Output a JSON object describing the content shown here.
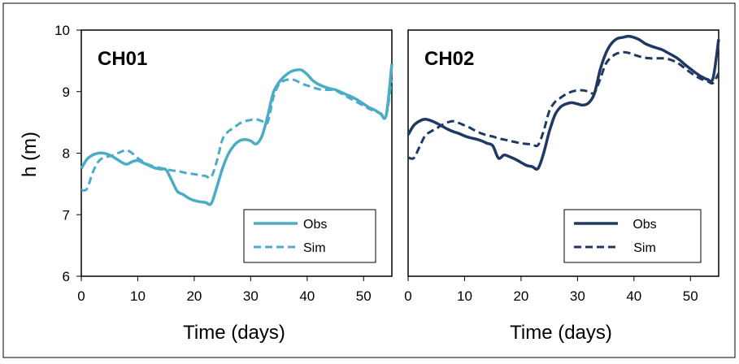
{
  "chart_data": [
    {
      "type": "line",
      "title": "CH01",
      "xlabel": "Time (days)",
      "ylabel": "h (m)",
      "xlim": [
        0,
        55
      ],
      "ylim": [
        6,
        10
      ],
      "xticks": [
        "0",
        "10",
        "20",
        "30",
        "40",
        "50"
      ],
      "yticks": [
        "6",
        "7",
        "8",
        "9",
        "10"
      ],
      "legend_position": "bottom-right",
      "grid": false,
      "series": [
        {
          "name": "Obs",
          "style": "solid",
          "color": "#4bacc6",
          "x": [
            0,
            1,
            2,
            3,
            4,
            5,
            6,
            7,
            8,
            9,
            10,
            11,
            12,
            13,
            14,
            15,
            16,
            17,
            18,
            19,
            20,
            21,
            22,
            23,
            24,
            25,
            26,
            27,
            28,
            29,
            30,
            31,
            32,
            33,
            34,
            35,
            36,
            37,
            38,
            39,
            40,
            41,
            42,
            43,
            44,
            45,
            46,
            47,
            48,
            49,
            50,
            51,
            52,
            53,
            54,
            55
          ],
          "values": [
            7.75,
            7.9,
            7.97,
            8.0,
            8.0,
            7.97,
            7.92,
            7.86,
            7.82,
            7.86,
            7.88,
            7.84,
            7.8,
            7.76,
            7.74,
            7.73,
            7.56,
            7.38,
            7.33,
            7.27,
            7.23,
            7.21,
            7.2,
            7.18,
            7.45,
            7.75,
            7.98,
            8.12,
            8.2,
            8.22,
            8.2,
            8.15,
            8.28,
            8.6,
            8.98,
            9.15,
            9.25,
            9.32,
            9.35,
            9.35,
            9.28,
            9.18,
            9.12,
            9.08,
            9.05,
            9.03,
            8.99,
            8.95,
            8.91,
            8.86,
            8.8,
            8.74,
            8.7,
            8.64,
            8.62,
            9.45
          ]
        },
        {
          "name": "Sim",
          "style": "dashed",
          "color": "#4bacc6",
          "x": [
            0,
            1,
            2,
            3,
            4,
            5,
            6,
            7,
            8,
            9,
            10,
            11,
            12,
            13,
            14,
            15,
            16,
            17,
            18,
            19,
            20,
            21,
            22,
            23,
            24,
            25,
            26,
            27,
            28,
            29,
            30,
            31,
            32,
            33,
            34,
            35,
            36,
            37,
            38,
            39,
            40,
            41,
            42,
            43,
            44,
            45,
            46,
            47,
            48,
            49,
            50,
            51,
            52,
            53,
            54,
            55
          ],
          "values": [
            7.4,
            7.42,
            7.68,
            7.86,
            7.93,
            7.95,
            7.98,
            8.02,
            8.05,
            8.0,
            7.92,
            7.86,
            7.81,
            7.78,
            7.76,
            7.74,
            7.72,
            7.71,
            7.69,
            7.67,
            7.66,
            7.64,
            7.63,
            7.61,
            7.87,
            8.22,
            8.35,
            8.41,
            8.48,
            8.52,
            8.54,
            8.55,
            8.52,
            8.5,
            8.9,
            9.12,
            9.18,
            9.2,
            9.18,
            9.13,
            9.1,
            9.07,
            9.04,
            9.03,
            9.03,
            9.02,
            8.97,
            8.92,
            8.87,
            8.82,
            8.77,
            8.72,
            8.68,
            8.65,
            8.62,
            9.2
          ]
        }
      ]
    },
    {
      "type": "line",
      "title": "CH02",
      "xlabel": "Time (days)",
      "ylabel": "",
      "xlim": [
        0,
        55
      ],
      "ylim": [
        6,
        10
      ],
      "xticks": [
        "0",
        "10",
        "20",
        "30",
        "40",
        "50"
      ],
      "yticks": [],
      "legend_position": "bottom-right",
      "grid": false,
      "series": [
        {
          "name": "Obs",
          "style": "solid",
          "color": "#1f3864",
          "x": [
            0,
            1,
            2,
            3,
            4,
            5,
            6,
            7,
            8,
            9,
            10,
            11,
            12,
            13,
            14,
            15,
            16,
            17,
            18,
            19,
            20,
            21,
            22,
            23,
            24,
            25,
            26,
            27,
            28,
            29,
            30,
            31,
            32,
            33,
            34,
            35,
            36,
            37,
            38,
            39,
            40,
            41,
            42,
            43,
            44,
            45,
            46,
            47,
            48,
            49,
            50,
            51,
            52,
            53,
            54,
            55
          ],
          "values": [
            8.3,
            8.45,
            8.52,
            8.55,
            8.53,
            8.49,
            8.44,
            8.39,
            8.35,
            8.32,
            8.28,
            8.25,
            8.23,
            8.2,
            8.16,
            8.12,
            7.92,
            7.97,
            7.94,
            7.9,
            7.85,
            7.8,
            7.78,
            7.75,
            8.0,
            8.35,
            8.62,
            8.75,
            8.8,
            8.82,
            8.8,
            8.78,
            8.82,
            8.97,
            9.35,
            9.62,
            9.78,
            9.86,
            9.88,
            9.9,
            9.88,
            9.84,
            9.78,
            9.74,
            9.71,
            9.68,
            9.63,
            9.58,
            9.52,
            9.44,
            9.37,
            9.3,
            9.24,
            9.2,
            9.22,
            9.85
          ]
        },
        {
          "name": "Sim",
          "style": "dashed",
          "color": "#1f3864",
          "x": [
            0,
            1,
            2,
            3,
            4,
            5,
            6,
            7,
            8,
            9,
            10,
            11,
            12,
            13,
            14,
            15,
            16,
            17,
            18,
            19,
            20,
            21,
            22,
            23,
            24,
            25,
            26,
            27,
            28,
            29,
            30,
            31,
            32,
            33,
            34,
            35,
            36,
            37,
            38,
            39,
            40,
            41,
            42,
            43,
            44,
            45,
            46,
            47,
            48,
            49,
            50,
            51,
            52,
            53,
            54,
            55
          ],
          "values": [
            7.93,
            7.92,
            8.1,
            8.28,
            8.35,
            8.4,
            8.46,
            8.5,
            8.52,
            8.49,
            8.45,
            8.41,
            8.36,
            8.32,
            8.29,
            8.27,
            8.24,
            8.22,
            8.2,
            8.18,
            8.16,
            8.15,
            8.14,
            8.13,
            8.36,
            8.68,
            8.83,
            8.9,
            8.96,
            9.0,
            9.02,
            9.02,
            9.0,
            8.98,
            9.2,
            9.45,
            9.56,
            9.62,
            9.64,
            9.63,
            9.6,
            9.57,
            9.55,
            9.54,
            9.54,
            9.54,
            9.53,
            9.5,
            9.45,
            9.38,
            9.31,
            9.25,
            9.2,
            9.17,
            9.14,
            9.3
          ]
        }
      ]
    }
  ]
}
